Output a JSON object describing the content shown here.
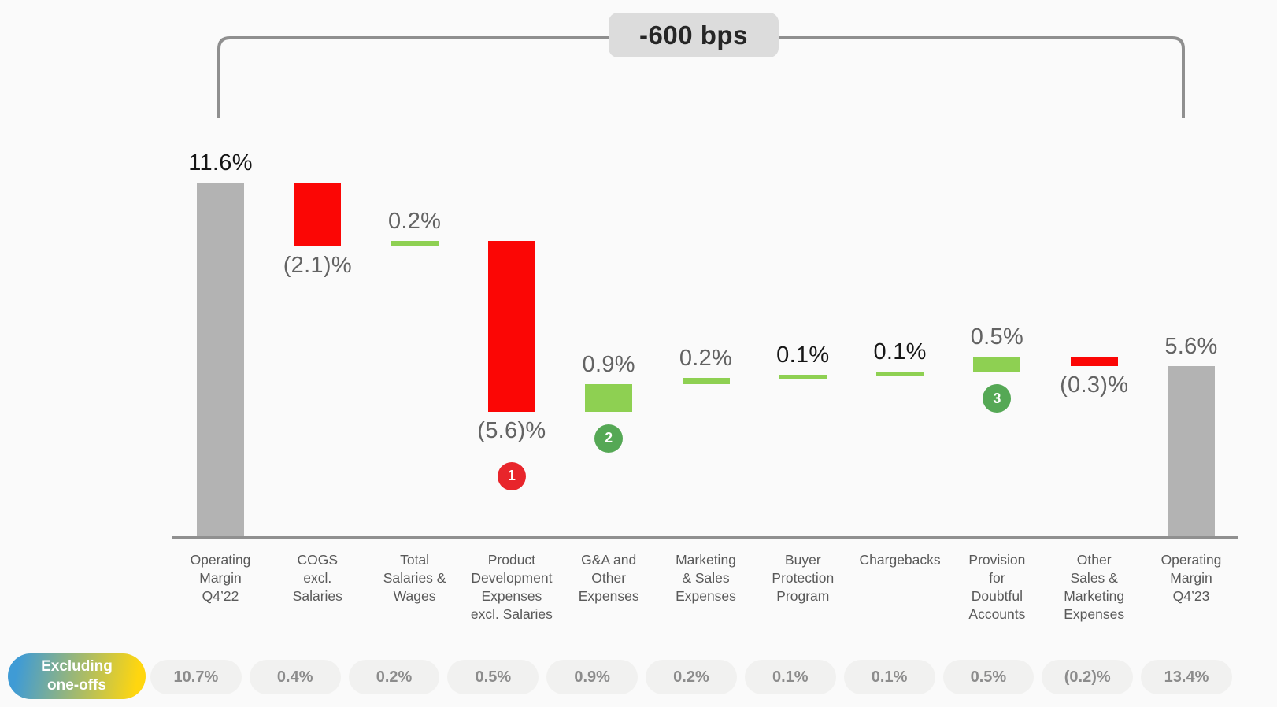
{
  "page": {
    "background": "#fafafa"
  },
  "annotation": {
    "change_label": "-600 bps"
  },
  "colors": {
    "bar_gray": "#b3b3b3",
    "bar_red": "#fb0605",
    "bar_green": "#8ed052",
    "badge_red": "#e8252b",
    "badge_green": "#55a855",
    "label_dark": "#161616",
    "label_gray": "#636363",
    "category_text": "#595959",
    "axis": "#909090",
    "bracket": "#8f8f8f",
    "bps_box_bg": "#dcdcdc",
    "bps_box_text": "#262626",
    "pill_bg": "#f1f1f0",
    "pill_text": "#8c8c8c",
    "excluding_blue": "#3f9bd5",
    "excluding_yellow": "#ffd60f"
  },
  "chart_data": {
    "type": "bar",
    "subtype": "waterfall",
    "title": "-600 bps",
    "unit": "%",
    "ylim": [
      0,
      11.6
    ],
    "start_value": 11.6,
    "end_value": 5.6,
    "excluding_label": "Excluding\none-offs",
    "columns": [
      {
        "category": "Operating Margin Q4’22",
        "lines": "Operating\nMargin\nQ4’22",
        "value": 11.6,
        "display": "11.6%",
        "kind": "total",
        "color": "gray",
        "label_pos": "above",
        "label_tone": "dark",
        "badge": null,
        "excluding": "10.7%"
      },
      {
        "category": "COGS excl. Salaries",
        "lines": "COGS\nexcl.\nSalaries",
        "value": -2.1,
        "display": "(2.1)%",
        "kind": "delta",
        "color": "red",
        "label_pos": "below",
        "label_tone": "gray",
        "badge": null,
        "excluding": "0.4%"
      },
      {
        "category": "Total Salaries & Wages",
        "lines": "Total\nSalaries &\nWages",
        "value": 0.2,
        "display": "0.2%",
        "kind": "delta",
        "color": "green",
        "label_pos": "above",
        "label_tone": "gray",
        "badge": null,
        "excluding": "0.2%"
      },
      {
        "category": "Product Development Expenses excl. Salaries",
        "lines": "Product\nDevelopment\nExpenses\nexcl. Salaries",
        "value": -5.6,
        "display": "(5.6)%",
        "kind": "delta",
        "color": "red",
        "label_pos": "below",
        "label_tone": "gray",
        "badge": {
          "num": "1",
          "color": "red"
        },
        "excluding": "0.5%"
      },
      {
        "category": "G&A and Other Expenses",
        "lines": "G&A and\nOther\nExpenses",
        "value": 0.9,
        "display": "0.9%",
        "kind": "delta",
        "color": "green",
        "label_pos": "above",
        "label_tone": "gray",
        "badge": {
          "num": "2",
          "color": "green"
        },
        "excluding": "0.9%"
      },
      {
        "category": "Marketing & Sales Expenses",
        "lines": "Marketing\n& Sales\nExpenses",
        "value": 0.2,
        "display": "0.2%",
        "kind": "delta",
        "color": "green",
        "label_pos": "above",
        "label_tone": "gray",
        "badge": null,
        "excluding": "0.2%"
      },
      {
        "category": "Buyer Protection Program",
        "lines": "Buyer\nProtection\nProgram",
        "value": 0.1,
        "display": "0.1%",
        "kind": "delta",
        "color": "green",
        "label_pos": "above",
        "label_tone": "dark",
        "badge": null,
        "excluding": "0.1%"
      },
      {
        "category": "Chargebacks",
        "lines": "Chargebacks",
        "value": 0.1,
        "display": "0.1%",
        "kind": "delta",
        "color": "green",
        "label_pos": "above",
        "label_tone": "dark",
        "badge": null,
        "excluding": "0.1%"
      },
      {
        "category": "Provision for Doubtful Accounts",
        "lines": "Provision\nfor\nDoubtful\nAccounts",
        "value": 0.5,
        "display": "0.5%",
        "kind": "delta",
        "color": "green",
        "label_pos": "above",
        "label_tone": "gray",
        "badge": {
          "num": "3",
          "color": "green"
        },
        "excluding": "0.5%"
      },
      {
        "category": "Other Sales & Marketing Expenses",
        "lines": "Other\nSales &\nMarketing\nExpenses",
        "value": -0.3,
        "display": "(0.3)%",
        "kind": "delta",
        "color": "red",
        "label_pos": "below",
        "label_tone": "gray",
        "badge": null,
        "excluding": "(0.2)%"
      },
      {
        "category": "Operating Margin Q4’23",
        "lines": "Operating\nMargin\nQ4’23",
        "value": 5.6,
        "display": "5.6%",
        "kind": "total",
        "color": "gray",
        "label_pos": "above",
        "label_tone": "gray",
        "badge": null,
        "excluding": "13.4%"
      }
    ]
  }
}
